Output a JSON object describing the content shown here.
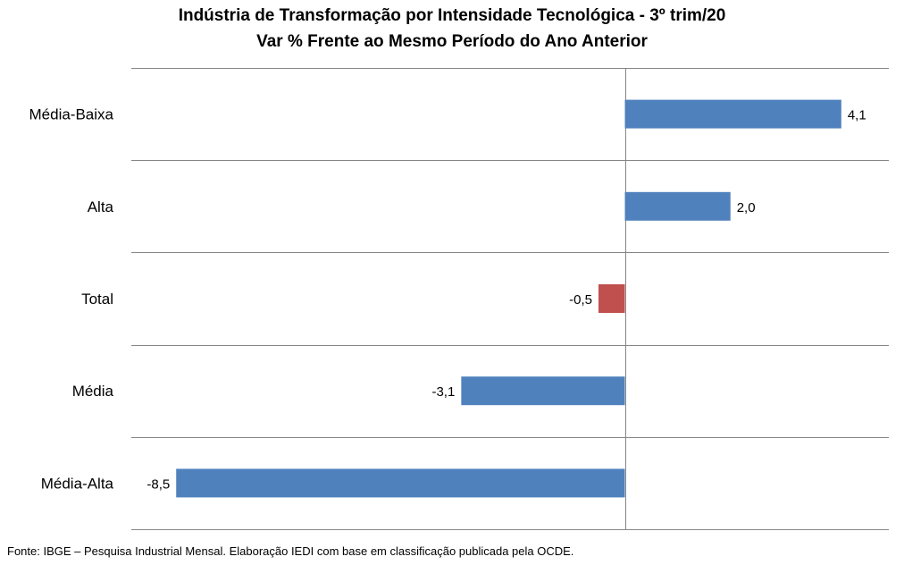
{
  "chart_data": {
    "type": "bar",
    "orientation": "horizontal",
    "title": "Indústria de Transformação por Intensidade Tecnológica - 3º trim/20",
    "subtitle": "Var % Frente ao Mesmo Período do Ano Anterior",
    "categories": [
      "Média-Baixa",
      "Alta",
      "Total",
      "Média",
      "Média-Alta"
    ],
    "values": [
      4.1,
      2.0,
      -0.5,
      -3.1,
      -8.5
    ],
    "data_labels": [
      "4,1",
      "2,0",
      "-0,5",
      "-3,1",
      "-8,5"
    ],
    "xlim": [
      -9.35,
      5.0
    ],
    "grid": "horizontal separators between categories",
    "legend": "none",
    "colors": {
      "default_bar": "#4F81BD",
      "highlight_bar": "#C0504D",
      "grid": "#868686"
    },
    "highlight_category": "Total"
  },
  "footer": {
    "source": "Fonte: IBGE – Pesquisa Industrial Mensal. Elaboração IEDI com base em classificação publicada pela OCDE."
  }
}
